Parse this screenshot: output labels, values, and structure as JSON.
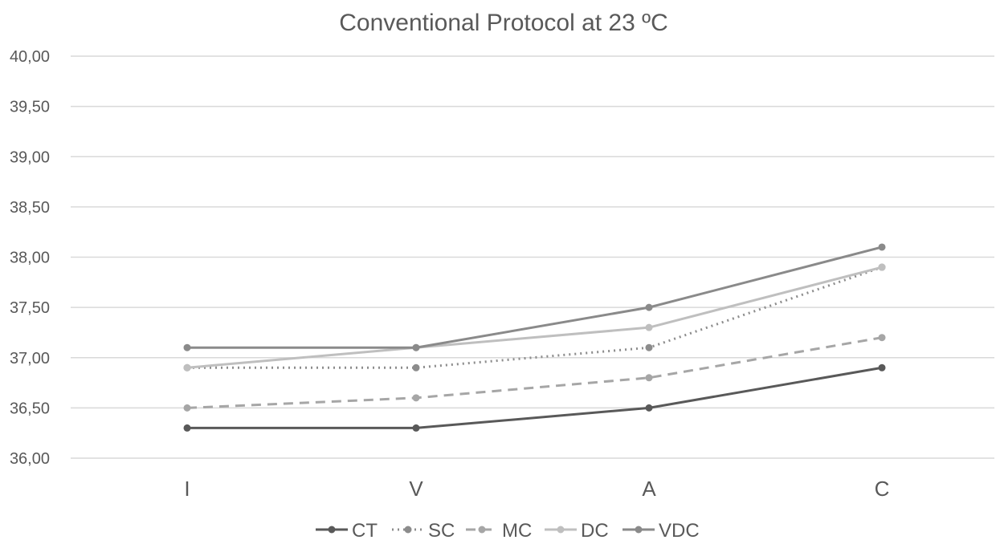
{
  "chart_data": {
    "type": "line",
    "title": "Conventional Protocol at 23 ºC",
    "xlabel": "",
    "ylabel": "",
    "categories": [
      "I",
      "V",
      "A",
      "C"
    ],
    "ylim": [
      36.0,
      40.0
    ],
    "yticks": [
      "36,00",
      "36,50",
      "37,00",
      "37,50",
      "38,00",
      "38,50",
      "39,00",
      "39,50",
      "40,00"
    ],
    "grid": true,
    "legend_position": "bottom",
    "series": [
      {
        "name": "CT",
        "values": [
          36.3,
          36.3,
          36.5,
          36.9
        ],
        "color": "#595959",
        "dash": "solid"
      },
      {
        "name": "SC",
        "values": [
          36.9,
          36.9,
          37.1,
          37.9
        ],
        "color": "#8c8c8c",
        "dash": "dotted"
      },
      {
        "name": "MC",
        "values": [
          36.5,
          36.6,
          36.8,
          37.2
        ],
        "color": "#a6a6a6",
        "dash": "dashed"
      },
      {
        "name": "DC",
        "values": [
          36.9,
          37.1,
          37.3,
          37.9
        ],
        "color": "#bfbfbf",
        "dash": "solid"
      },
      {
        "name": "VDC",
        "values": [
          37.1,
          37.1,
          37.5,
          38.1
        ],
        "color": "#8a8a8a",
        "dash": "solid"
      }
    ]
  }
}
